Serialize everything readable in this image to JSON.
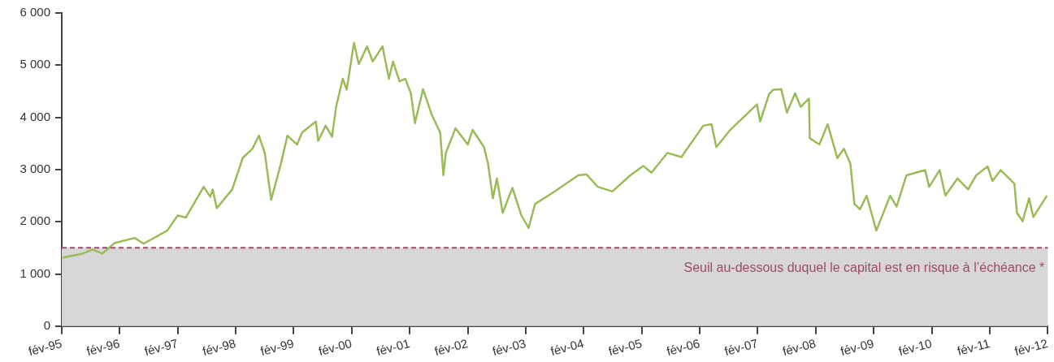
{
  "chart_data": {
    "type": "line",
    "x": [
      "1995-02-05",
      "1995-06-12",
      "1995-08-12",
      "1995-10-12",
      "1995-12-28",
      "1996-05-04",
      "1996-06-29",
      "1996-11-26",
      "1997-02-01",
      "1997-03-21",
      "1997-07-12",
      "1997-08-23",
      "1997-09-08",
      "1997-10-03",
      "1998-01-09",
      "1998-03-14",
      "1998-05-15",
      "1998-06-25",
      "1998-08-01",
      "1998-09-11",
      "1998-11-11",
      "1998-12-22",
      "1999-02-22",
      "1999-03-23",
      "1999-06-18",
      "1999-07-03",
      "1999-08-19",
      "1999-09-29",
      "1999-10-24",
      "1999-12-05",
      "1999-12-30",
      "2000-02-15",
      "2000-03-15",
      "2000-05-06",
      "2000-06-11",
      "2000-08-12",
      "2000-09-22",
      "2000-10-17",
      "2000-11-28",
      "2001-01-03",
      "2001-02-08",
      "2001-03-03",
      "2001-04-24",
      "2001-06-19",
      "2001-08-10",
      "2001-08-30",
      "2001-09-15",
      "2001-11-15",
      "2002-02-01",
      "2002-03-01",
      "2002-05-12",
      "2002-06-07",
      "2002-07-07",
      "2002-08-02",
      "2002-09-08",
      "2002-11-08",
      "2003-01-04",
      "2003-02-19",
      "2003-03-29",
      "2003-07-26",
      "2003-12-27",
      "2004-02-17",
      "2004-04-28",
      "2004-07-29",
      "2004-11-20",
      "2005-02-10",
      "2005-04-01",
      "2005-07-11",
      "2005-10-07",
      "2006-02-23",
      "2006-04-14",
      "2006-05-14",
      "2006-08-10",
      "2007-01-26",
      "2007-02-16",
      "2007-04-12",
      "2007-05-07",
      "2007-06-27",
      "2007-08-02",
      "2007-09-23",
      "2007-10-28",
      "2007-12-19",
      "2007-12-24",
      "2008-02-24",
      "2008-04-15",
      "2008-06-15",
      "2008-07-26",
      "2008-09-06",
      "2008-10-01",
      "2008-11-06",
      "2008-12-17",
      "2009-02-17",
      "2009-05-13",
      "2009-06-23",
      "2009-08-24",
      "2009-12-20",
      "2010-01-15",
      "2010-03-20",
      "2010-04-26",
      "2010-07-11",
      "2010-09-17",
      "2010-11-07",
      "2011-01-18",
      "2011-02-18",
      "2011-04-09",
      "2011-07-04",
      "2011-07-20",
      "2011-08-25",
      "2011-10-05",
      "2011-11-01",
      "2012-01-26"
    ],
    "series": [
      {
        "color": "#9bbb59",
        "values": [
          1310,
          1390,
          1470,
          1390,
          1590,
          1690,
          1580,
          1830,
          2120,
          2080,
          2670,
          2480,
          2620,
          2260,
          2620,
          3220,
          3400,
          3650,
          3320,
          2420,
          3110,
          3650,
          3480,
          3710,
          3920,
          3550,
          3840,
          3630,
          4200,
          4740,
          4530,
          5430,
          5020,
          5360,
          5070,
          5360,
          4740,
          5070,
          4690,
          4740,
          4460,
          3890,
          4540,
          4040,
          3710,
          2890,
          3320,
          3790,
          3480,
          3760,
          3430,
          3110,
          2450,
          2830,
          2170,
          2650,
          2120,
          1880,
          2340,
          2570,
          2890,
          2910,
          2670,
          2580,
          2890,
          3070,
          2940,
          3320,
          3240,
          3840,
          3870,
          3430,
          3760,
          4250,
          3920,
          4450,
          4530,
          4540,
          4090,
          4460,
          4200,
          4360,
          3600,
          3480,
          3870,
          3220,
          3400,
          3110,
          2340,
          2240,
          2500,
          1830,
          2500,
          2290,
          2890,
          2990,
          2670,
          2990,
          2500,
          2830,
          2620,
          2890,
          3060,
          2780,
          2990,
          2730,
          2170,
          2010,
          2450,
          2090,
          2500
        ]
      }
    ],
    "xlim": [
      "1995-02-01",
      "2012-02-01"
    ],
    "xticks": [
      {
        "value": "1995-02-01",
        "label": "fév-95"
      },
      {
        "value": "1996-02-01",
        "label": "fév-96"
      },
      {
        "value": "1997-02-01",
        "label": "fév-97"
      },
      {
        "value": "1998-02-01",
        "label": "fév-98"
      },
      {
        "value": "1999-02-01",
        "label": "fév-99"
      },
      {
        "value": "2000-02-01",
        "label": "fév-00"
      },
      {
        "value": "2001-02-01",
        "label": "fév-01"
      },
      {
        "value": "2002-02-01",
        "label": "fév-02"
      },
      {
        "value": "2003-02-01",
        "label": "fév-03"
      },
      {
        "value": "2004-02-01",
        "label": "fév-04"
      },
      {
        "value": "2005-02-01",
        "label": "fév-05"
      },
      {
        "value": "2006-02-01",
        "label": "fév-06"
      },
      {
        "value": "2007-02-01",
        "label": "fév-07"
      },
      {
        "value": "2008-02-01",
        "label": "fév-08"
      },
      {
        "value": "2009-02-01",
        "label": "fév-09"
      },
      {
        "value": "2010-02-01",
        "label": "fév-10"
      },
      {
        "value": "2011-02-01",
        "label": "fév-11"
      },
      {
        "value": "2012-02-01",
        "label": "fév-12"
      }
    ],
    "ylim": [
      0,
      6000
    ],
    "yticks": [
      0,
      {
        "value": 1000,
        "label": "1 000"
      },
      {
        "value": 2000,
        "label": "2 000"
      },
      {
        "value": 3000,
        "label": "3 000"
      },
      {
        "value": 4000,
        "label": "4 000"
      },
      {
        "value": 5000,
        "label": "5 000"
      },
      {
        "value": 6000,
        "label": "6 000"
      }
    ],
    "ref_lines": [
      {
        "axis": "y",
        "value": 1500,
        "label": "Seuil au-dessous duquel le capital est en risque à l’échéance *",
        "color": "#9e4a6c",
        "line_style": "dashed"
      }
    ],
    "bands": [
      {
        "axis": "y",
        "from": 0,
        "to": 1500,
        "color": "#d8d6d7"
      }
    ],
    "grid": false,
    "legend": false,
    "marker": "none",
    "line_style": "solid"
  }
}
